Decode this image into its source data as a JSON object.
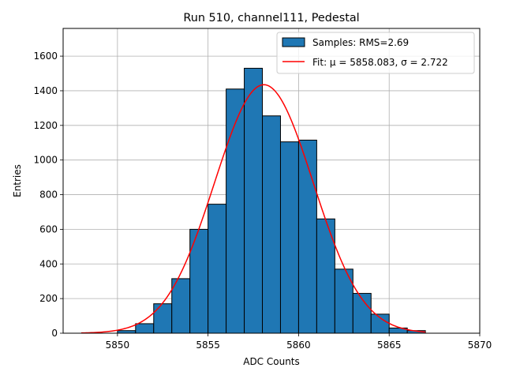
{
  "chart_data": {
    "type": "bar",
    "title": "Run 510, channel111, Pedestal",
    "xlabel": "ADC Counts",
    "ylabel": "Entries",
    "xlim": [
      5847,
      5870
    ],
    "ylim": [
      0,
      1760
    ],
    "xticks": [
      5850,
      5855,
      5860,
      5865,
      5870
    ],
    "yticks": [
      0,
      200,
      400,
      600,
      800,
      1000,
      1200,
      1400,
      1600
    ],
    "grid": true,
    "legend_position": "top-right",
    "bin_edges": [
      5850,
      5851,
      5852,
      5853,
      5854,
      5855,
      5856,
      5857,
      5858,
      5859,
      5860,
      5861,
      5862,
      5863,
      5864,
      5865,
      5866,
      5867
    ],
    "series": [
      {
        "name": "Samples: RMS=2.69",
        "kind": "histogram",
        "color": "#1f77b4",
        "edgecolor": "#000000",
        "values": [
          15,
          55,
          170,
          315,
          600,
          745,
          1410,
          1530,
          1255,
          1105,
          1115,
          660,
          370,
          230,
          110,
          30,
          15
        ]
      },
      {
        "name": "Fit: μ = 5858.083, σ = 2.722",
        "kind": "line",
        "color": "#ff0000",
        "function": "gaussian",
        "mu": 5858.083,
        "sigma": 2.722,
        "amplitude": 1435,
        "x_range": [
          5848,
          5867
        ]
      }
    ]
  }
}
